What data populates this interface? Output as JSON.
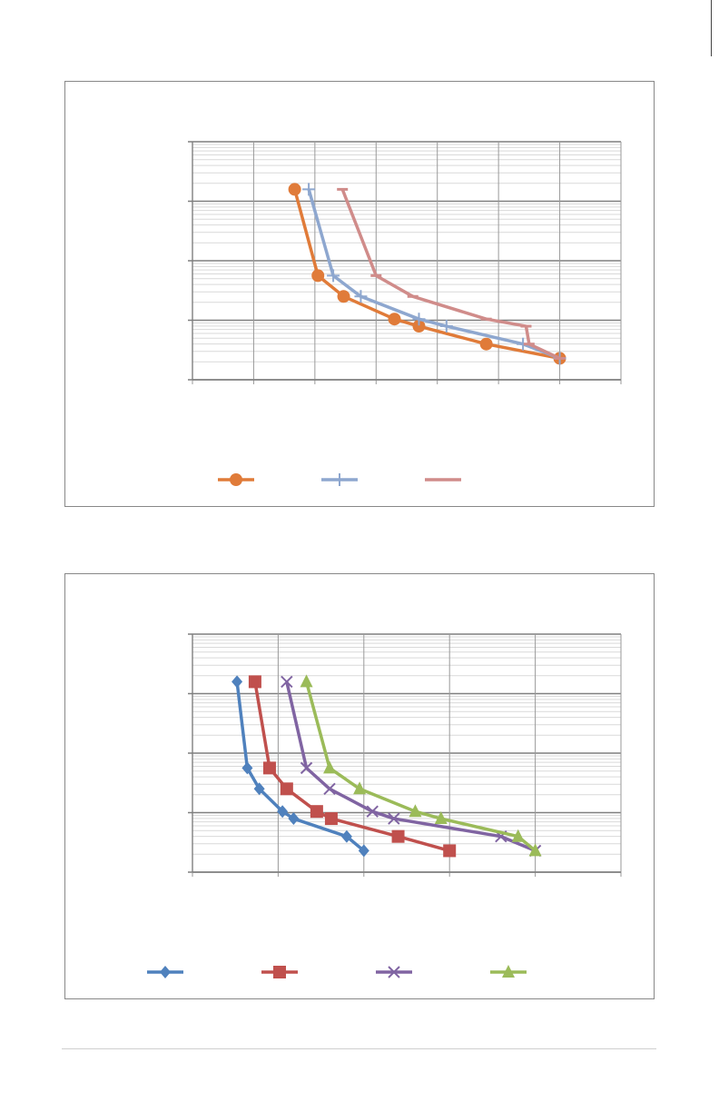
{
  "chart_data": [
    {
      "type": "line",
      "title": "",
      "xlabel": "",
      "ylabel": "",
      "y_scale": "log",
      "xlim": [
        0,
        7
      ],
      "ylim": [
        0,
        4
      ],
      "y_decades": 4,
      "x_gridlines": [
        0,
        1,
        2,
        3,
        4,
        5,
        6,
        7
      ],
      "grid": true,
      "legend_position": "bottom",
      "series": [
        {
          "color": "#e07b39",
          "marker": "circle",
          "points": [
            [
              1.67,
              3.2
            ],
            [
              2.05,
              1.75
            ],
            [
              2.47,
              1.4
            ],
            [
              3.3,
              1.02
            ],
            [
              3.7,
              0.9
            ],
            [
              4.8,
              0.6
            ],
            [
              6.0,
              0.36
            ]
          ]
        },
        {
          "color": "#8ea7cf",
          "marker": "plus",
          "points": [
            [
              1.9,
              3.2
            ],
            [
              2.3,
              1.75
            ],
            [
              2.75,
              1.4
            ],
            [
              3.7,
              1.02
            ],
            [
              4.15,
              0.9
            ],
            [
              5.4,
              0.6
            ],
            [
              6.0,
              0.36
            ]
          ]
        },
        {
          "color": "#d08c8a",
          "marker": "dash",
          "points": [
            [
              2.45,
              3.2
            ],
            [
              3.0,
              1.75
            ],
            [
              3.6,
              1.4
            ],
            [
              4.8,
              1.02
            ],
            [
              5.45,
              0.9
            ],
            [
              5.5,
              0.6
            ],
            [
              6.0,
              0.36
            ]
          ]
        }
      ]
    },
    {
      "type": "line",
      "title": "",
      "xlabel": "",
      "ylabel": "",
      "y_scale": "log",
      "xlim": [
        0,
        5
      ],
      "ylim": [
        0,
        4
      ],
      "y_decades": 4,
      "x_gridlines": [
        0,
        1,
        2,
        3,
        4,
        5
      ],
      "grid": true,
      "legend_position": "bottom",
      "series": [
        {
          "color": "#4f81bd",
          "marker": "diamond",
          "points": [
            [
              0.52,
              3.2
            ],
            [
              0.64,
              1.75
            ],
            [
              0.78,
              1.4
            ],
            [
              1.05,
              1.02
            ],
            [
              1.18,
              0.9
            ],
            [
              1.8,
              0.6
            ],
            [
              2.0,
              0.36
            ]
          ]
        },
        {
          "color": "#c0504d",
          "marker": "square",
          "points": [
            [
              0.73,
              3.2
            ],
            [
              0.9,
              1.75
            ],
            [
              1.1,
              1.4
            ],
            [
              1.45,
              1.02
            ],
            [
              1.62,
              0.9
            ],
            [
              2.4,
              0.6
            ],
            [
              3.0,
              0.36
            ]
          ]
        },
        {
          "color": "#8064a2",
          "marker": "x",
          "points": [
            [
              1.1,
              3.2
            ],
            [
              1.33,
              1.75
            ],
            [
              1.6,
              1.4
            ],
            [
              2.1,
              1.02
            ],
            [
              2.35,
              0.9
            ],
            [
              3.6,
              0.6
            ],
            [
              4.0,
              0.36
            ]
          ]
        },
        {
          "color": "#9bbb59",
          "marker": "triangle",
          "points": [
            [
              1.33,
              3.2
            ],
            [
              1.6,
              1.75
            ],
            [
              1.95,
              1.4
            ],
            [
              2.6,
              1.02
            ],
            [
              2.9,
              0.9
            ],
            [
              3.8,
              0.6
            ],
            [
              4.0,
              0.36
            ]
          ]
        }
      ]
    }
  ]
}
